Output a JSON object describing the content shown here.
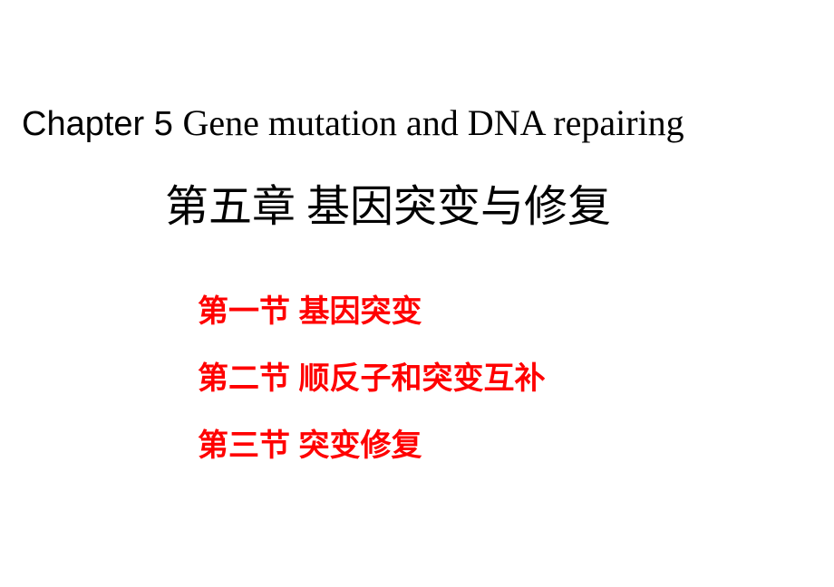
{
  "title": {
    "line1_prefix": "Chapter 5 ",
    "line1_rest": "Gene mutation and DNA repairing",
    "line2": "第五章 基因突变与修复",
    "color": "#000000",
    "font_size_line1": 38,
    "font_size_line2": 48
  },
  "sections": [
    {
      "label": "第一节 基因突变"
    },
    {
      "label": "第二节 顺反子和突变互补"
    },
    {
      "label": "第三节 突变修复"
    }
  ],
  "section_style": {
    "color": "#ff0000",
    "font_size": 34,
    "font_weight": "bold"
  },
  "background_color": "#ffffff"
}
